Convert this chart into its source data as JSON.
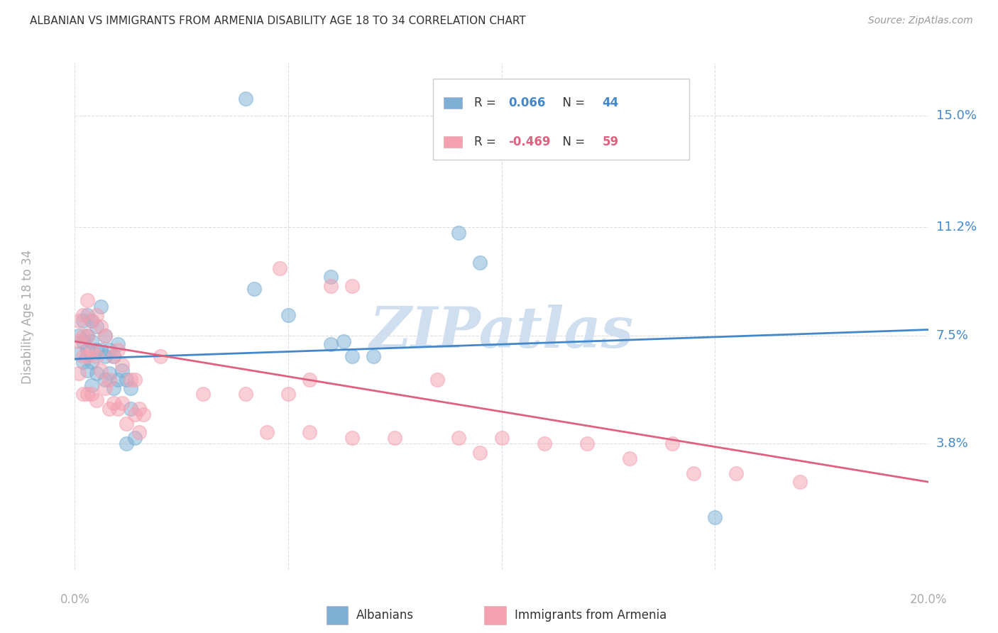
{
  "title": "ALBANIAN VS IMMIGRANTS FROM ARMENIA DISABILITY AGE 18 TO 34 CORRELATION CHART",
  "source": "Source: ZipAtlas.com",
  "ylabel": "Disability Age 18 to 34",
  "xlim": [
    0.0,
    0.2
  ],
  "ylim": [
    -0.005,
    0.168
  ],
  "yticks": [
    0.038,
    0.075,
    0.112,
    0.15
  ],
  "ytick_labels": [
    "3.8%",
    "7.5%",
    "11.2%",
    "15.0%"
  ],
  "xtick_vals": [
    0.0,
    0.05,
    0.1,
    0.15,
    0.2
  ],
  "xtick_labels_ends": [
    "0.0%",
    "20.0%"
  ],
  "background_color": "#ffffff",
  "grid_color": "#dddddd",
  "blue_color": "#7bafd4",
  "pink_color": "#f4a0b0",
  "legend_label_blue": "Albanians",
  "legend_label_pink": "Immigrants from Armenia",
  "blue_r_val": "0.066",
  "blue_n_val": "44",
  "pink_r_val": "-0.469",
  "pink_n_val": "59",
  "blue_points_x": [
    0.001,
    0.001,
    0.002,
    0.002,
    0.002,
    0.003,
    0.003,
    0.003,
    0.003,
    0.004,
    0.004,
    0.004,
    0.004,
    0.005,
    0.005,
    0.005,
    0.006,
    0.006,
    0.007,
    0.007,
    0.007,
    0.008,
    0.008,
    0.009,
    0.009,
    0.01,
    0.01,
    0.011,
    0.012,
    0.012,
    0.013,
    0.013,
    0.014,
    0.04,
    0.042,
    0.05,
    0.06,
    0.063,
    0.065,
    0.07,
    0.09,
    0.095,
    0.15,
    0.06
  ],
  "blue_points_y": [
    0.075,
    0.069,
    0.08,
    0.073,
    0.066,
    0.082,
    0.075,
    0.07,
    0.063,
    0.08,
    0.073,
    0.066,
    0.058,
    0.078,
    0.07,
    0.062,
    0.085,
    0.07,
    0.075,
    0.068,
    0.06,
    0.07,
    0.062,
    0.068,
    0.057,
    0.072,
    0.06,
    0.063,
    0.06,
    0.038,
    0.057,
    0.05,
    0.04,
    0.156,
    0.091,
    0.082,
    0.095,
    0.073,
    0.068,
    0.068,
    0.11,
    0.1,
    0.013,
    0.072
  ],
  "pink_points_x": [
    0.001,
    0.001,
    0.001,
    0.002,
    0.002,
    0.002,
    0.002,
    0.003,
    0.003,
    0.003,
    0.003,
    0.004,
    0.004,
    0.004,
    0.005,
    0.005,
    0.005,
    0.006,
    0.006,
    0.007,
    0.007,
    0.008,
    0.008,
    0.009,
    0.009,
    0.01,
    0.01,
    0.011,
    0.011,
    0.012,
    0.013,
    0.014,
    0.014,
    0.015,
    0.015,
    0.016,
    0.02,
    0.03,
    0.04,
    0.045,
    0.05,
    0.055,
    0.055,
    0.06,
    0.065,
    0.065,
    0.075,
    0.09,
    0.095,
    0.1,
    0.11,
    0.12,
    0.13,
    0.14,
    0.145,
    0.155,
    0.17,
    0.085,
    0.048
  ],
  "pink_points_y": [
    0.08,
    0.073,
    0.062,
    0.082,
    0.075,
    0.068,
    0.055,
    0.087,
    0.075,
    0.068,
    0.055,
    0.08,
    0.07,
    0.055,
    0.082,
    0.068,
    0.053,
    0.078,
    0.063,
    0.075,
    0.057,
    0.06,
    0.05,
    0.068,
    0.052,
    0.07,
    0.05,
    0.065,
    0.052,
    0.045,
    0.06,
    0.06,
    0.048,
    0.05,
    0.042,
    0.048,
    0.068,
    0.055,
    0.055,
    0.042,
    0.055,
    0.042,
    0.06,
    0.092,
    0.092,
    0.04,
    0.04,
    0.04,
    0.035,
    0.04,
    0.038,
    0.038,
    0.033,
    0.038,
    0.028,
    0.028,
    0.025,
    0.06,
    0.098
  ],
  "blue_line_x": [
    0.0,
    0.2
  ],
  "blue_line_y": [
    0.067,
    0.077
  ],
  "pink_line_x": [
    0.0,
    0.2
  ],
  "pink_line_y": [
    0.073,
    0.025
  ],
  "watermark": "ZIPatlas",
  "watermark_color": "#d0dff0"
}
